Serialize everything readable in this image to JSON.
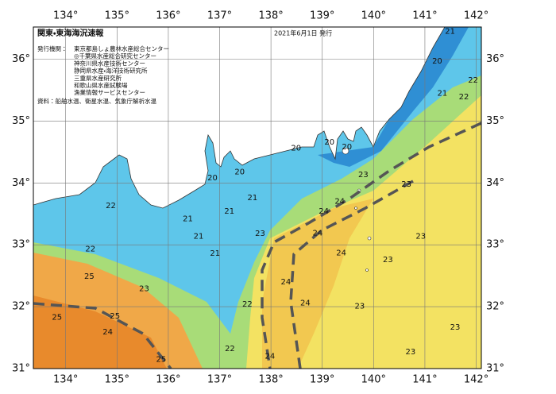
{
  "header": {
    "title": "関東・東海海況速報",
    "date": "2021年6月1日 発行"
  },
  "issuers": {
    "label": "発行機関：",
    "items": [
      "東京都島しょ農林水産総合センター",
      "◎千葉県水産総合研究センター",
      "神奈川県水産技術センター",
      "静岡県水産・海洋技術研究所",
      "三重県水産研究所",
      "和歌山県水産試験場",
      "漁業情報サービスセンター"
    ]
  },
  "source": "資料：船舶水温、衛星水温、気象庁解析水温",
  "map": {
    "lon_range": [
      133.37,
      142.1
    ],
    "lat_range": [
      31,
      36.52
    ],
    "grid": true,
    "lon_ticks": [
      {
        "value": 134,
        "label": "134°"
      },
      {
        "value": 135,
        "label": "135°"
      },
      {
        "value": 136,
        "label": "136°"
      },
      {
        "value": 137,
        "label": "137°"
      },
      {
        "value": 138,
        "label": "138°"
      },
      {
        "value": 139,
        "label": "139°"
      },
      {
        "value": 140,
        "label": "140°"
      },
      {
        "value": 141,
        "label": "141°"
      },
      {
        "value": 142,
        "label": "142°"
      }
    ],
    "lat_ticks": [
      {
        "value": 31,
        "label": "31°"
      },
      {
        "value": 32,
        "label": "32°"
      },
      {
        "value": 33,
        "label": "33°"
      },
      {
        "value": 34,
        "label": "34°"
      },
      {
        "value": 35,
        "label": "35°"
      },
      {
        "value": 36,
        "label": "36°"
      }
    ],
    "temperature_labels": [
      {
        "lon": 141.49,
        "lat": 36.45,
        "value": 21
      },
      {
        "lon": 141.24,
        "lat": 35.97,
        "value": 20
      },
      {
        "lon": 141.94,
        "lat": 35.66,
        "value": 22
      },
      {
        "lon": 141.34,
        "lat": 35.45,
        "value": 21
      },
      {
        "lon": 141.76,
        "lat": 35.39,
        "value": 22
      },
      {
        "lon": 138.49,
        "lat": 34.56,
        "value": 20
      },
      {
        "lon": 139.14,
        "lat": 34.66,
        "value": 20
      },
      {
        "lon": 139.48,
        "lat": 34.58,
        "value": 20
      },
      {
        "lon": 137.39,
        "lat": 34.18,
        "value": 20
      },
      {
        "lon": 136.86,
        "lat": 34.08,
        "value": 20
      },
      {
        "lon": 139.8,
        "lat": 34.13,
        "value": 23
      },
      {
        "lon": 140.64,
        "lat": 33.98,
        "value": 23
      },
      {
        "lon": 137.64,
        "lat": 33.76,
        "value": 21
      },
      {
        "lon": 137.19,
        "lat": 33.54,
        "value": 21
      },
      {
        "lon": 134.88,
        "lat": 33.63,
        "value": 22
      },
      {
        "lon": 136.38,
        "lat": 33.42,
        "value": 21
      },
      {
        "lon": 136.59,
        "lat": 33.14,
        "value": 21
      },
      {
        "lon": 136.91,
        "lat": 32.86,
        "value": 21
      },
      {
        "lon": 134.48,
        "lat": 32.93,
        "value": 22
      },
      {
        "lon": 137.79,
        "lat": 33.18,
        "value": 23
      },
      {
        "lon": 139.03,
        "lat": 33.54,
        "value": 24
      },
      {
        "lon": 139.34,
        "lat": 33.7,
        "value": 24
      },
      {
        "lon": 138.91,
        "lat": 33.19,
        "value": 24
      },
      {
        "lon": 140.92,
        "lat": 33.14,
        "value": 23
      },
      {
        "lon": 139.37,
        "lat": 32.87,
        "value": 24
      },
      {
        "lon": 140.28,
        "lat": 32.76,
        "value": 23
      },
      {
        "lon": 138.29,
        "lat": 32.4,
        "value": 24
      },
      {
        "lon": 138.67,
        "lat": 32.06,
        "value": 24
      },
      {
        "lon": 134.46,
        "lat": 32.49,
        "value": 25
      },
      {
        "lon": 135.53,
        "lat": 32.29,
        "value": 23
      },
      {
        "lon": 137.54,
        "lat": 32.04,
        "value": 22
      },
      {
        "lon": 139.73,
        "lat": 32.01,
        "value": 23
      },
      {
        "lon": 133.83,
        "lat": 31.83,
        "value": 25
      },
      {
        "lon": 134.96,
        "lat": 31.85,
        "value": 25
      },
      {
        "lon": 134.82,
        "lat": 31.59,
        "value": 24
      },
      {
        "lon": 141.59,
        "lat": 31.67,
        "value": 23
      },
      {
        "lon": 137.2,
        "lat": 31.32,
        "value": 22
      },
      {
        "lon": 137.98,
        "lat": 31.2,
        "value": 24
      },
      {
        "lon": 135.86,
        "lat": 31.15,
        "value": 25
      },
      {
        "lon": 140.72,
        "lat": 31.27,
        "value": 23
      }
    ]
  }
}
